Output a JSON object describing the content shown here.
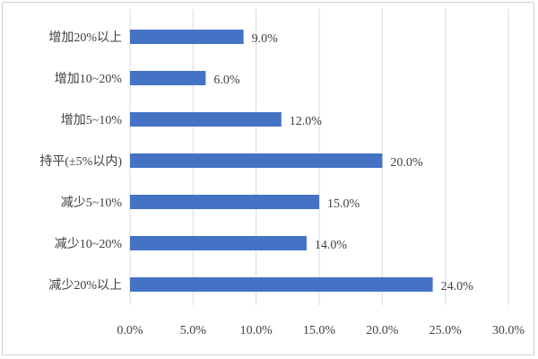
{
  "chart_data": {
    "type": "bar",
    "orientation": "horizontal",
    "title": "",
    "xlabel": "",
    "ylabel": "",
    "categories": [
      "增加20%以上",
      "增加10~20%",
      "增加5~10%",
      "持平(±5%以内)",
      "减少5~10%",
      "减少10~20%",
      "减少20%以上"
    ],
    "values": [
      9.0,
      6.0,
      12.0,
      20.0,
      15.0,
      14.0,
      24.0
    ],
    "data_labels": [
      "9.0%",
      "6.0%",
      "12.0%",
      "20.0%",
      "15.0%",
      "14.0%",
      "24.0%"
    ],
    "xlim": [
      0,
      30
    ],
    "x_ticks": [
      0,
      5,
      10,
      15,
      20,
      25,
      30
    ],
    "x_tick_labels": [
      "0.0%",
      "5.0%",
      "10.0%",
      "15.0%",
      "20.0%",
      "25.0%",
      "30.0%"
    ],
    "grid": true,
    "legend": "none",
    "bar_color": "#4472C4"
  }
}
